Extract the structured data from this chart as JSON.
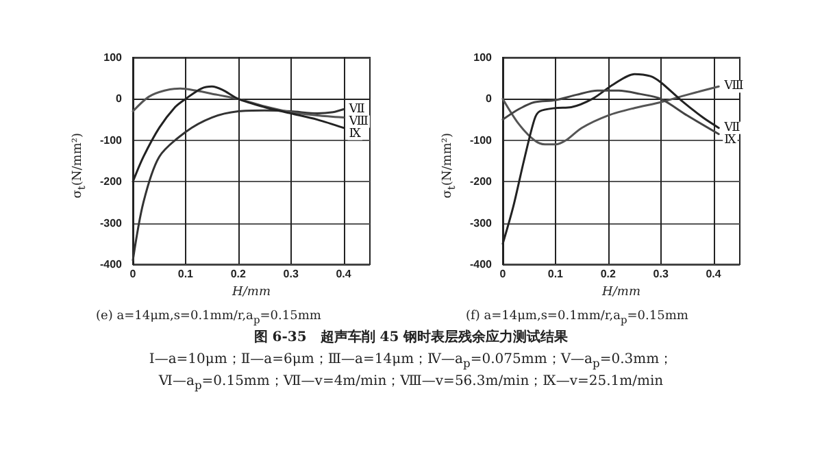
{
  "chart_data": [
    {
      "type": "line",
      "subtitle": "(e) a=14μm,s=0.1mm/r,a$_{p}$=0.15mm",
      "xlabel": "H/mm",
      "ylabel": "σ$_{t}$(N/mm²)",
      "xlim": [
        0,
        0.45
      ],
      "xticks": [
        0,
        0.1,
        0.2,
        0.3,
        0.4
      ],
      "ylim": [
        -400,
        100
      ],
      "yticks": [
        -400,
        -300,
        -200,
        -100,
        0,
        100
      ],
      "grid": true,
      "marker": "none",
      "line_style": "solid",
      "annotations": [
        "图 6-35　超声车削 45 钢时表层残余应力测试结果",
        "Ⅰ—a=10μm；Ⅱ—a=6μm；Ⅲ—a=14μm；Ⅳ—a$_{p}$=0.075mm；Ⅴ—a$_{p}$=0.3mm；",
        "Ⅵ—a$_{p}$=0.15mm；Ⅶ—v=4m/min；Ⅷ—v=56.3m/min；Ⅸ—v=25.1m/min"
      ],
      "series": [
        {
          "name": "Ⅶ",
          "color": "#333333",
          "x": [
            0,
            0.02,
            0.05,
            0.1,
            0.15,
            0.2,
            0.25,
            0.3,
            0.35,
            0.38,
            0.4
          ],
          "values": [
            -390,
            -250,
            -140,
            -80,
            -45,
            -30,
            -28,
            -30,
            -35,
            -32,
            -25
          ]
        },
        {
          "name": "Ⅷ",
          "color": "#555555",
          "x": [
            0,
            0.03,
            0.06,
            0.09,
            0.12,
            0.16,
            0.2,
            0.25,
            0.3,
            0.35,
            0.4
          ],
          "values": [
            -30,
            5,
            20,
            25,
            20,
            10,
            0,
            -18,
            -32,
            -40,
            -45
          ]
        },
        {
          "name": "Ⅸ",
          "color": "#222222",
          "x": [
            0,
            0.02,
            0.05,
            0.08,
            0.1,
            0.13,
            0.15,
            0.17,
            0.2,
            0.25,
            0.3,
            0.35,
            0.4
          ],
          "values": [
            -200,
            -140,
            -70,
            -20,
            0,
            25,
            30,
            22,
            0,
            -20,
            -35,
            -50,
            -70
          ]
        }
      ]
    },
    {
      "type": "line",
      "subtitle": "(f) a=14μm,s=0.1mm/r,a$_{p}$=0.15mm",
      "xlabel": "H/mm",
      "ylabel": "σ$_{t}$(N/mm²)",
      "xlim": [
        0,
        0.45
      ],
      "xticks": [
        0,
        0.1,
        0.2,
        0.3,
        0.4
      ],
      "ylim": [
        -400,
        100
      ],
      "yticks": [
        -400,
        -300,
        -200,
        -100,
        0,
        100
      ],
      "grid": true,
      "marker": "none",
      "line_style": "solid",
      "series": [
        {
          "name": "Ⅷ",
          "color": "#555555",
          "x": [
            0,
            0.03,
            0.06,
            0.08,
            0.1,
            0.12,
            0.15,
            0.2,
            0.25,
            0.3,
            0.35,
            0.41
          ],
          "values": [
            0,
            -60,
            -100,
            -110,
            -110,
            -100,
            -70,
            -40,
            -22,
            -8,
            10,
            30
          ]
        },
        {
          "name": "Ⅶ",
          "color": "#222222",
          "x": [
            0,
            0.02,
            0.04,
            0.06,
            0.07,
            0.1,
            0.13,
            0.17,
            0.21,
            0.25,
            0.28,
            0.3,
            0.34,
            0.38,
            0.41
          ],
          "values": [
            -350,
            -260,
            -150,
            -50,
            -30,
            -22,
            -20,
            0,
            35,
            60,
            55,
            40,
            -5,
            -45,
            -70
          ]
        },
        {
          "name": "Ⅸ",
          "color": "#444444",
          "x": [
            0,
            0.03,
            0.06,
            0.1,
            0.14,
            0.18,
            0.22,
            0.26,
            0.3,
            0.35,
            0.41
          ],
          "values": [
            -50,
            -25,
            -8,
            -3,
            10,
            20,
            20,
            12,
            0,
            -40,
            -85
          ]
        }
      ]
    }
  ]
}
